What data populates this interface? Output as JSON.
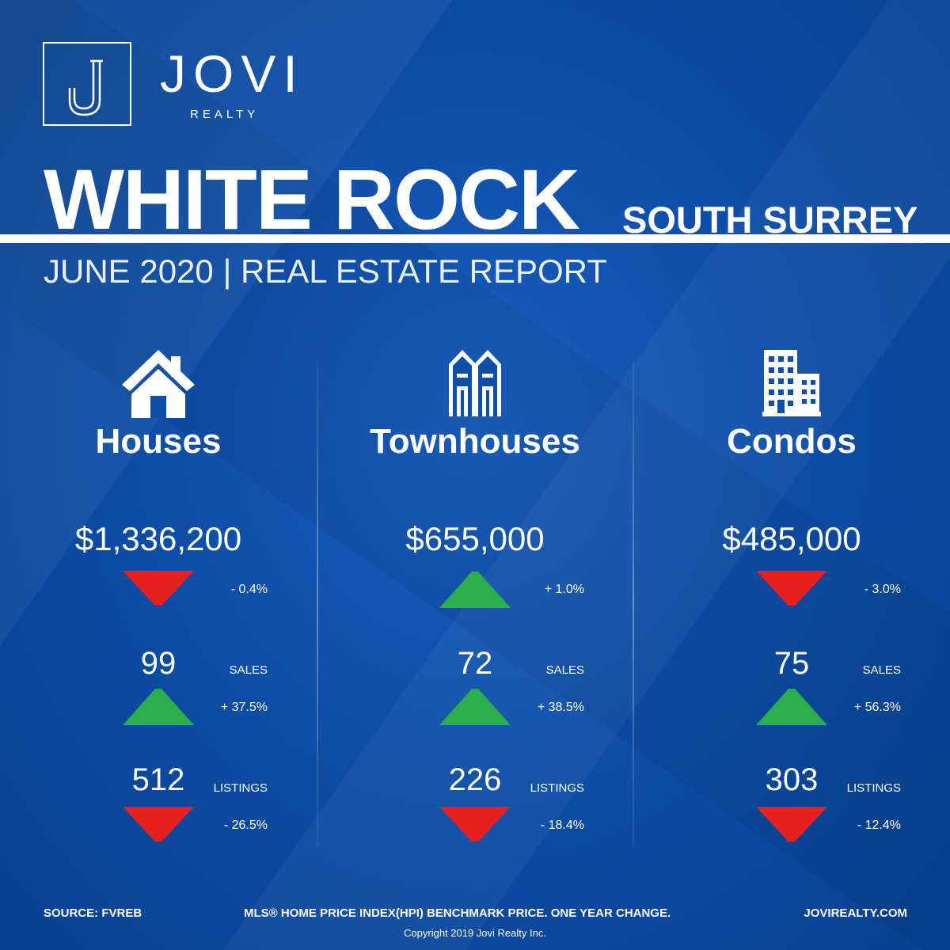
{
  "brand": {
    "name": "JOVI",
    "sub": "REALTY",
    "logo_letter": "J"
  },
  "title": {
    "main": "WHITE ROCK",
    "sub": "SOUTH SURREY"
  },
  "report_line": "JUNE 2020 | REAL ESTATE REPORT",
  "colors": {
    "background": "#0d4ea8",
    "up": "#2ab04a",
    "down": "#e8201f",
    "text": "#ffffff"
  },
  "columns": [
    {
      "icon": "house-icon",
      "title": "Houses",
      "price": "$1,336,200",
      "price_change": "- 0.4%",
      "price_dir": "down",
      "sales": "99",
      "sales_label": "SALES",
      "sales_change": "+ 37.5%",
      "sales_dir": "up",
      "listings": "512",
      "listings_label": "LISTINGS",
      "listings_change": "- 26.5%",
      "listings_dir": "down"
    },
    {
      "icon": "townhouse-icon",
      "title": "Townhouses",
      "price": "$655,000",
      "price_change": "+ 1.0%",
      "price_dir": "up",
      "sales": "72",
      "sales_label": "SALES",
      "sales_change": "+ 38.5%",
      "sales_dir": "up",
      "listings": "226",
      "listings_label": "LISTINGS",
      "listings_change": "- 18.4%",
      "listings_dir": "down"
    },
    {
      "icon": "condo-building-icon",
      "title": "Condos",
      "price": "$485,000",
      "price_change": "- 3.0%",
      "price_dir": "down",
      "sales": "75",
      "sales_label": "SALES",
      "sales_change": "+ 56.3%",
      "sales_dir": "up",
      "listings": "303",
      "listings_label": "LISTINGS",
      "listings_change": "- 12.4%",
      "listings_dir": "down"
    }
  ],
  "footer": {
    "source": "SOURCE:  FVREB",
    "note": "MLS® HOME PRICE INDEX(HPI) BENCHMARK PRICE. ONE YEAR CHANGE.",
    "website": "JOVIREALTY.COM",
    "copyright": "Copyright 2019 Jovi Realty Inc."
  }
}
